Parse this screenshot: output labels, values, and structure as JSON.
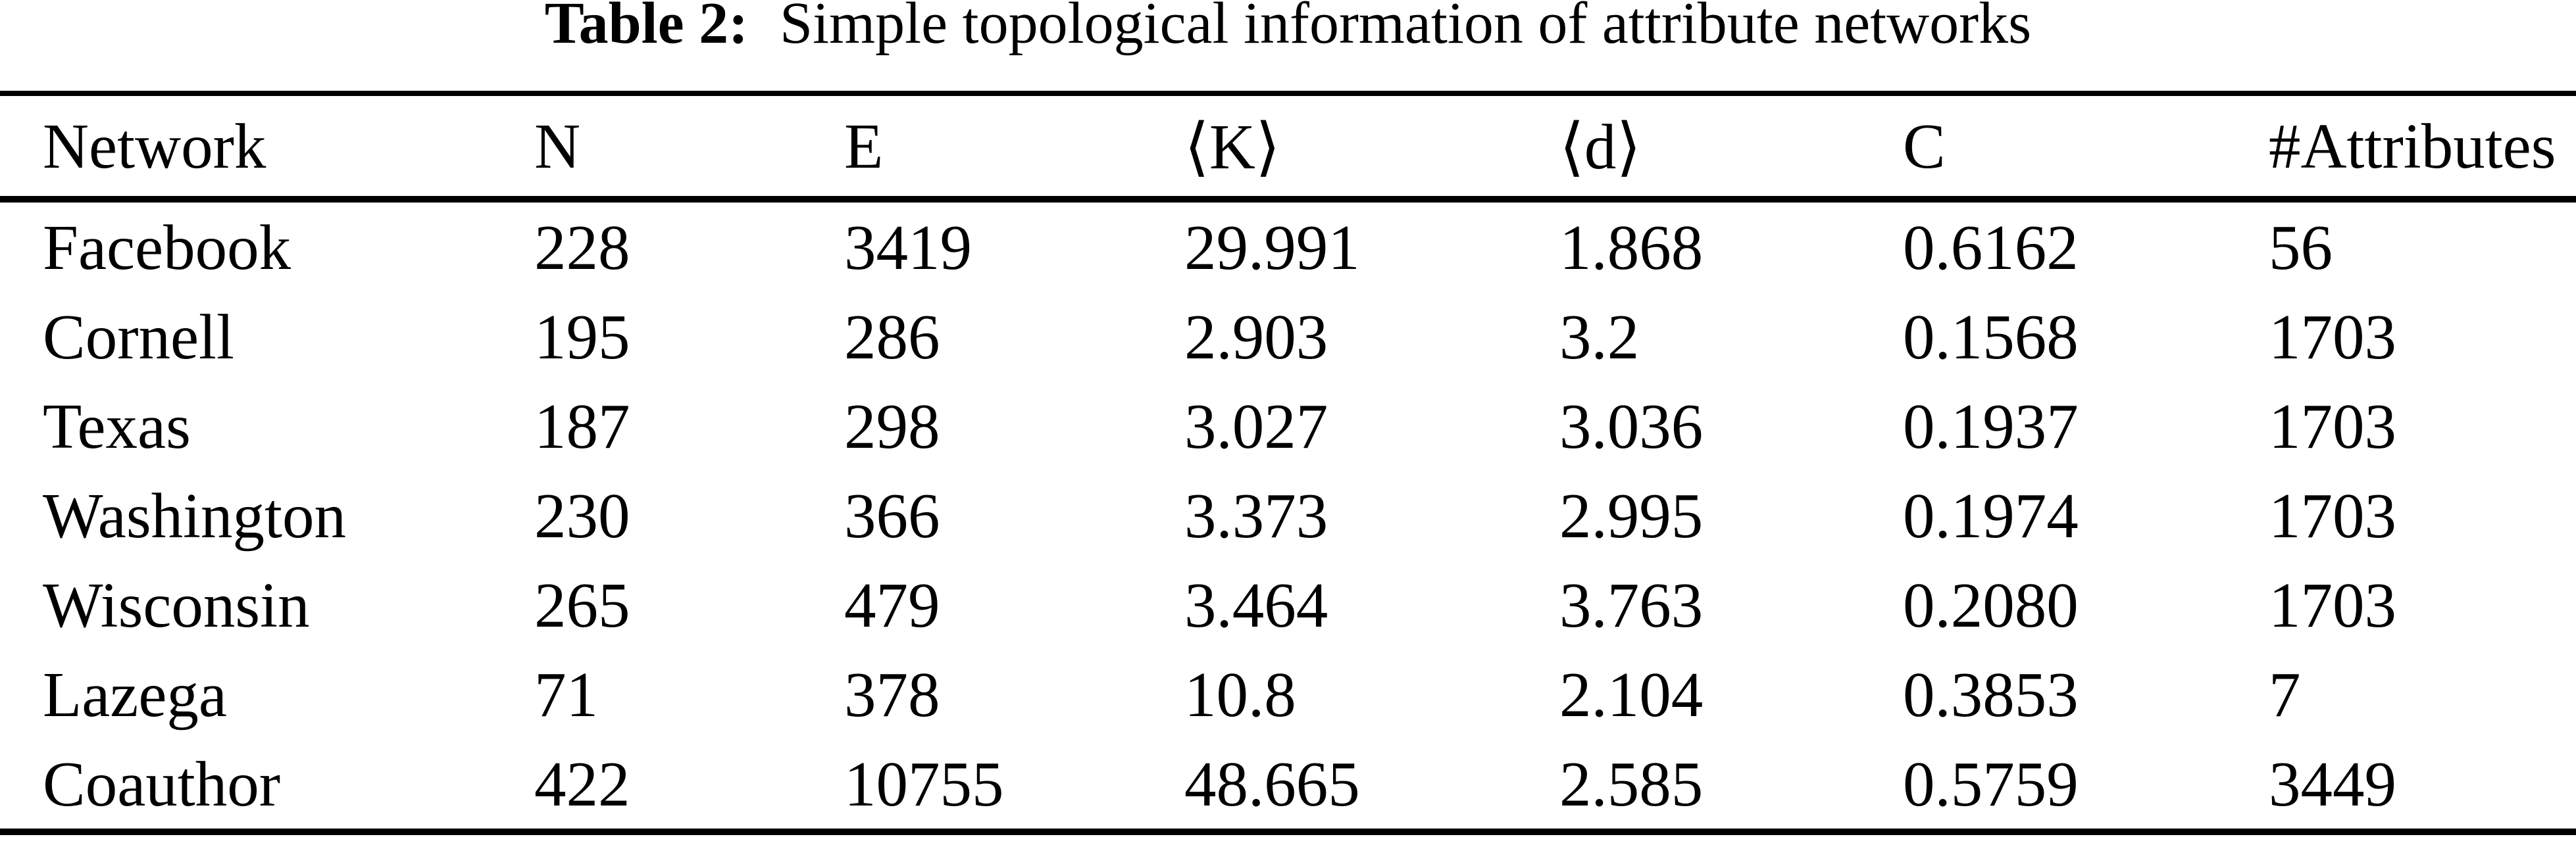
{
  "page": {
    "background": "#ffffff",
    "text_color": "#000000",
    "rule_color": "#000000"
  },
  "caption": {
    "label": "Table 2:",
    "text": "Simple topological information of attribute networks"
  },
  "table": {
    "columns": [
      "Network",
      "N",
      "E",
      "⟨K⟩",
      "⟨d⟩",
      "C",
      "#Attributes"
    ],
    "rows": [
      [
        "Facebook",
        "228",
        "3419",
        "29.991",
        "1.868",
        "0.6162",
        "56"
      ],
      [
        "Cornell",
        "195",
        "286",
        "2.903",
        "3.2",
        "0.1568",
        "1703"
      ],
      [
        "Texas",
        "187",
        "298",
        "3.027",
        "3.036",
        "0.1937",
        "1703"
      ],
      [
        "Washington",
        "230",
        "366",
        "3.373",
        "2.995",
        "0.1974",
        "1703"
      ],
      [
        "Wisconsin",
        "265",
        "479",
        "3.464",
        "3.763",
        "0.2080",
        "1703"
      ],
      [
        "Lazega",
        "71",
        "378",
        "10.8",
        "2.104",
        "0.3853",
        "7"
      ],
      [
        "Coauthor",
        "422",
        "10755",
        "48.665",
        "2.585",
        "0.5759",
        "3449"
      ]
    ]
  }
}
